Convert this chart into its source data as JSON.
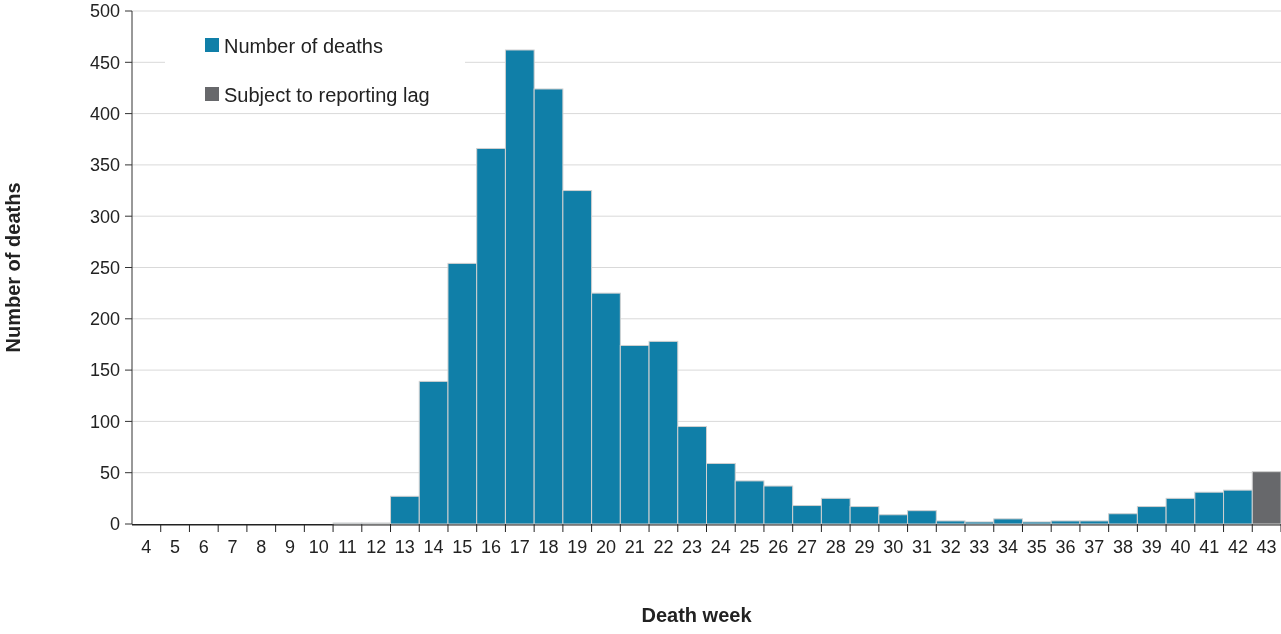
{
  "chart_data": {
    "type": "bar",
    "xlabel": "Death week",
    "ylabel": "Number of deaths",
    "categories": [
      "4",
      "5",
      "6",
      "7",
      "8",
      "9",
      "10",
      "11",
      "12",
      "13",
      "14",
      "15",
      "16",
      "17",
      "18",
      "19",
      "20",
      "21",
      "22",
      "23",
      "24",
      "25",
      "26",
      "27",
      "28",
      "29",
      "30",
      "31",
      "32",
      "33",
      "34",
      "35",
      "36",
      "37",
      "38",
      "39",
      "40",
      "41",
      "42",
      "43"
    ],
    "series": [
      {
        "name": "Number of deaths",
        "color": "#107fa8",
        "values": [
          0,
          0,
          0,
          0,
          0,
          0,
          0,
          1,
          1,
          27,
          139,
          254,
          366,
          462,
          424,
          325,
          225,
          174,
          178,
          95,
          59,
          42,
          37,
          18,
          25,
          17,
          9,
          13,
          3,
          2,
          5,
          2,
          3,
          3,
          10,
          17,
          25,
          31,
          33,
          null
        ]
      },
      {
        "name": "Subject to reporting lag",
        "color": "#67686b",
        "values": [
          null,
          null,
          null,
          null,
          null,
          null,
          null,
          null,
          null,
          null,
          null,
          null,
          null,
          null,
          null,
          null,
          null,
          null,
          null,
          null,
          null,
          null,
          null,
          null,
          null,
          null,
          null,
          null,
          null,
          null,
          null,
          null,
          null,
          null,
          null,
          null,
          null,
          null,
          null,
          51
        ]
      }
    ],
    "ylim": [
      0,
      500
    ],
    "yticks": [
      0,
      50,
      100,
      150,
      200,
      250,
      300,
      350,
      400,
      450,
      500
    ],
    "grid": "y",
    "legend": "top left"
  }
}
